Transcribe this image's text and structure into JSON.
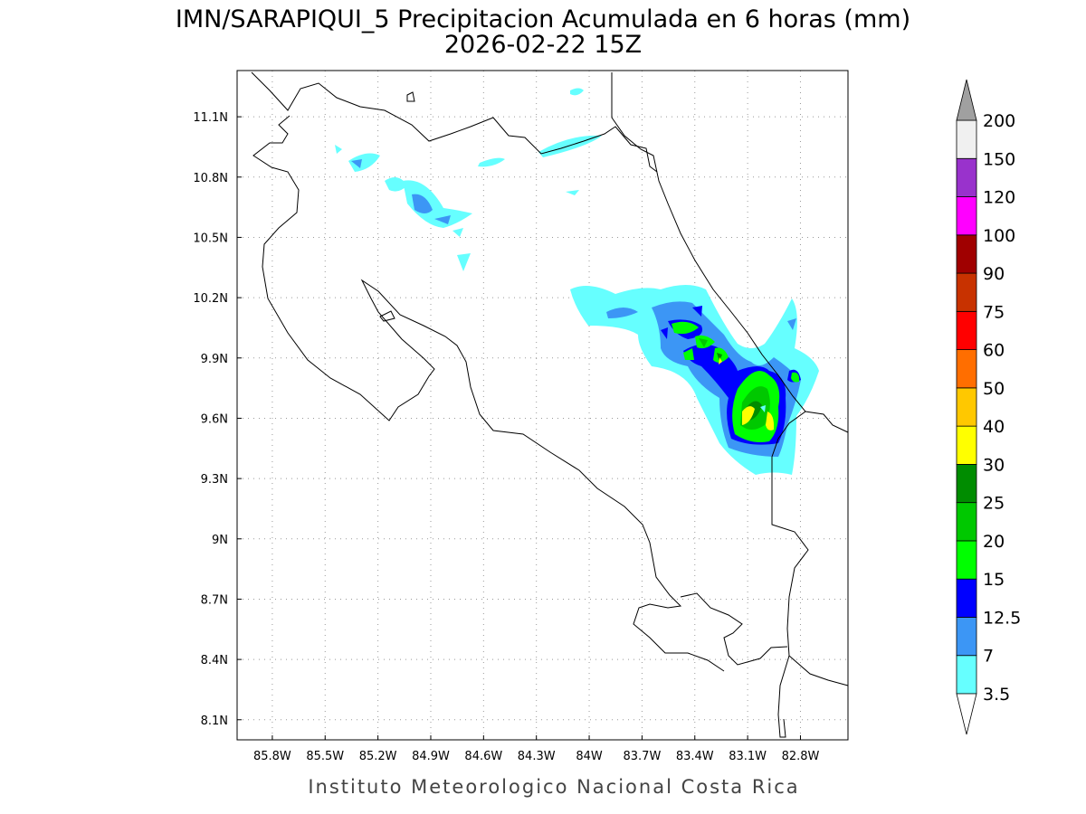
{
  "title": "IMN/SARAPIQUI_5 Precipitacion Acumulada en 6 horas (mm)",
  "subtitle": "2026-02-22 15Z",
  "footer": "Instituto Meteorologico Nacional Costa Rica",
  "map": {
    "lonlim": [
      -86.0,
      -82.53
    ],
    "latlim": [
      8.0,
      11.33
    ],
    "lonticks": [
      {
        "value": -85.8,
        "label": "85.8W"
      },
      {
        "value": -85.5,
        "label": "85.5W"
      },
      {
        "value": -85.2,
        "label": "85.2W"
      },
      {
        "value": -84.9,
        "label": "84.9W"
      },
      {
        "value": -84.6,
        "label": "84.6W"
      },
      {
        "value": -84.3,
        "label": "84.3W"
      },
      {
        "value": -84.0,
        "label": "84W"
      },
      {
        "value": -83.7,
        "label": "83.7W"
      },
      {
        "value": -83.4,
        "label": "83.4W"
      },
      {
        "value": -83.1,
        "label": "83.1W"
      },
      {
        "value": -82.8,
        "label": "82.8W"
      }
    ],
    "latticks": [
      {
        "value": 8.1,
        "label": "8.1N"
      },
      {
        "value": 8.4,
        "label": "8.4N"
      },
      {
        "value": 8.7,
        "label": "8.7N"
      },
      {
        "value": 9.0,
        "label": "9N"
      },
      {
        "value": 9.3,
        "label": "9.3N"
      },
      {
        "value": 9.6,
        "label": "9.6N"
      },
      {
        "value": 9.9,
        "label": "9.9N"
      },
      {
        "value": 10.2,
        "label": "10.2N"
      },
      {
        "value": 10.5,
        "label": "10.5N"
      },
      {
        "value": 10.8,
        "label": "10.8N"
      },
      {
        "value": 11.1,
        "label": "11.1N"
      }
    ]
  },
  "colorbar": {
    "levels": [
      3.5,
      7,
      12.5,
      15,
      20,
      25,
      30,
      40,
      50,
      60,
      75,
      90,
      100,
      120,
      150,
      200
    ],
    "colors": [
      "#66ffff",
      "#3c96f5",
      "#0000ff",
      "#00ff00",
      "#00c800",
      "#008c00",
      "#ffff00",
      "#ffc800",
      "#ff6e00",
      "#ff0000",
      "#c83200",
      "#a00000",
      "#ff00ff",
      "#9932cc",
      "#f0f0f0"
    ],
    "over_color": "#a0a0a0",
    "under_color": "#ffffff"
  }
}
